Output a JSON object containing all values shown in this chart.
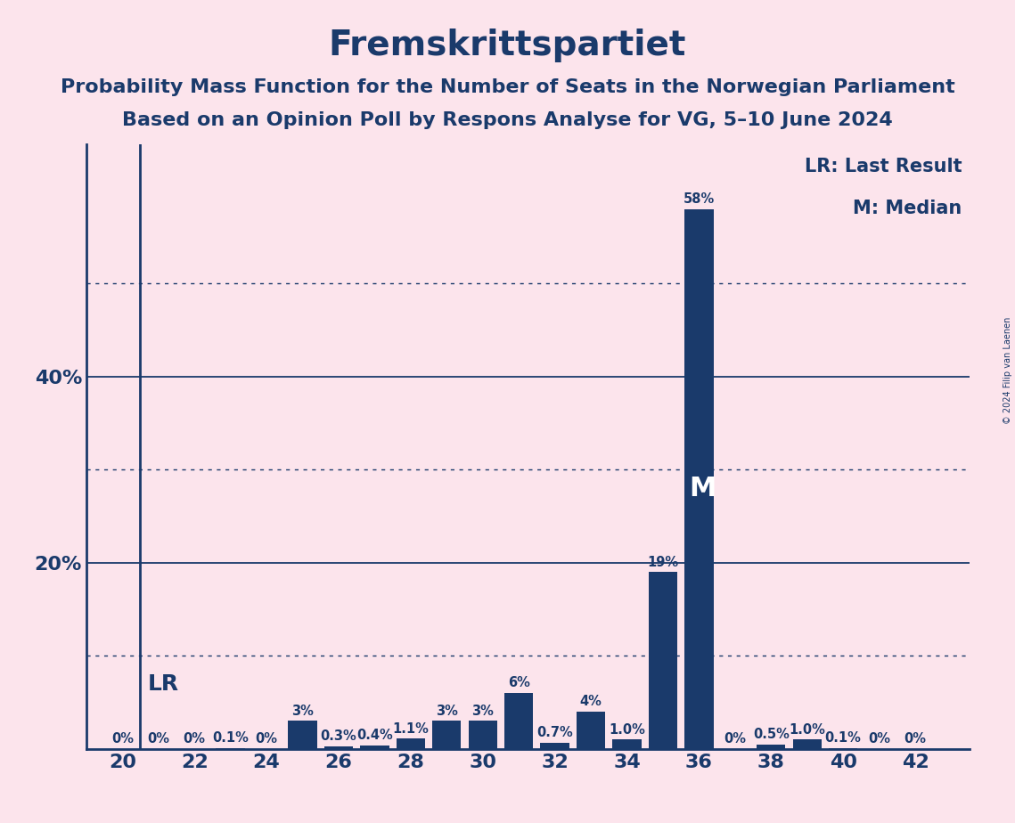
{
  "title": "Fremskrittspartiet",
  "subtitle1": "Probability Mass Function for the Number of Seats in the Norwegian Parliament",
  "subtitle2": "Based on an Opinion Poll by Respons Analyse for VG, 5–10 June 2024",
  "copyright": "© 2024 Filip van Laenen",
  "background_color": "#fce4ec",
  "bar_color": "#1a3a6b",
  "text_color": "#1a3a6b",
  "seats": [
    20,
    21,
    22,
    23,
    24,
    25,
    26,
    27,
    28,
    29,
    30,
    31,
    32,
    33,
    34,
    35,
    36,
    37,
    38,
    39,
    40,
    41,
    42
  ],
  "probabilities": [
    0.0,
    0.0,
    0.0,
    0.1,
    0.0,
    3.0,
    0.3,
    0.4,
    1.1,
    3.0,
    3.0,
    6.0,
    0.7,
    4.0,
    1.0,
    19.0,
    58.0,
    0.0,
    0.5,
    1.0,
    0.1,
    0.0,
    0.0
  ],
  "labels": [
    "0%",
    "0%",
    "0%",
    "0.1%",
    "0%",
    "3%",
    "0.3%",
    "0.4%",
    "1.1%",
    "3%",
    "3%",
    "6%",
    "0.7%",
    "4%",
    "1.0%",
    "19%",
    "58%",
    "0%",
    "0.5%",
    "1.0%",
    "0.1%",
    "0%",
    "0%"
  ],
  "lr_seat": 20.5,
  "median_seat": 36,
  "xlim": [
    19.0,
    43.5
  ],
  "ylim": [
    0,
    65
  ],
  "solid_yticks": [
    20,
    40
  ],
  "dotted_yticks": [
    10,
    30,
    50
  ],
  "xticks": [
    20,
    22,
    24,
    26,
    28,
    30,
    32,
    34,
    36,
    38,
    40,
    42
  ],
  "title_fontsize": 28,
  "subtitle_fontsize": 16,
  "bar_label_fontsize": 10.5,
  "tick_fontsize": 16,
  "ytick_fontsize": 16,
  "legend_fontsize": 15,
  "lr_label_fontsize": 18,
  "m_label_fontsize": 22,
  "copyright_fontsize": 7
}
